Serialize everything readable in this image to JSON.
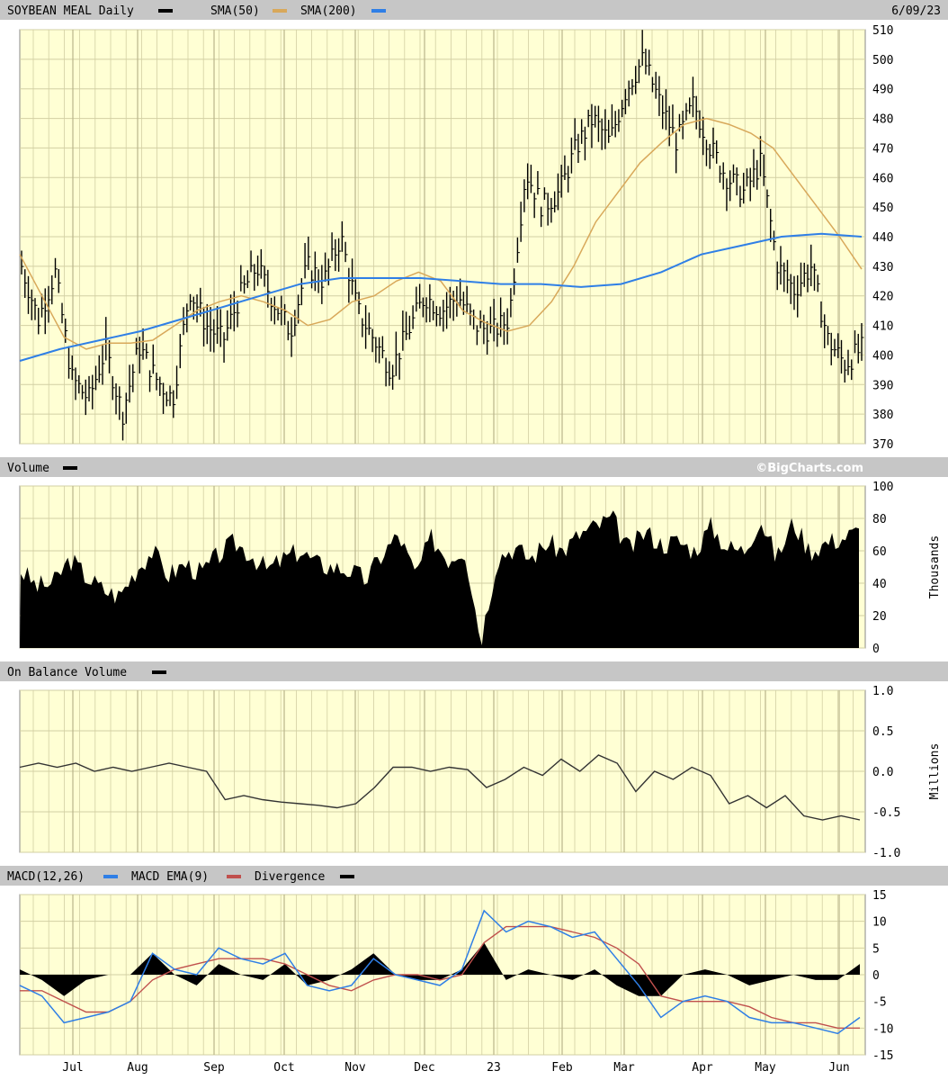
{
  "colors": {
    "panel_bg": "#ffffd4",
    "grid": "#d2cfa3",
    "header_bg": "#c6c6c6",
    "price": "#000000",
    "sma50": "#d8a85a",
    "sma200": "#2f7fe6",
    "macd": "#2f7fe6",
    "macd_ema": "#c0504d",
    "divergence": "#000000",
    "volume": "#000000",
    "obv": "#333333"
  },
  "date_label": "6/09/23",
  "watermark": "©BigCharts.com",
  "x_labels": [
    "Jul",
    "Aug",
    "Sep",
    "Oct",
    "Nov",
    "Dec",
    "23",
    "Feb",
    "Mar",
    "Apr",
    "May",
    "Jun"
  ],
  "chart_data": [
    {
      "type": "line",
      "panel": "price",
      "title": "SOYBEAN MEAL Daily",
      "legend": [
        {
          "name": "SOYBEAN MEAL Daily",
          "color": "#000000"
        },
        {
          "name": "SMA(50)",
          "color": "#d8a85a"
        },
        {
          "name": "SMA(200)",
          "color": "#2f7fe6"
        }
      ],
      "ylim": [
        370,
        510
      ],
      "yticks": [
        370,
        380,
        390,
        400,
        410,
        420,
        430,
        440,
        450,
        460,
        470,
        480,
        490,
        500,
        510
      ],
      "grid": true,
      "x_week_index": [
        0,
        4,
        8,
        13,
        17,
        22,
        26,
        30,
        34,
        39,
        43,
        48
      ],
      "series": [
        {
          "name": "SOYBEAN MEAL Daily",
          "style": "ohlc",
          "x": [
            0,
            1,
            2,
            3,
            4,
            5,
            6,
            7,
            8,
            9,
            10,
            11,
            12,
            13,
            14,
            15,
            16,
            17,
            18,
            19,
            20,
            21,
            22,
            23,
            24,
            25,
            26,
            27,
            28,
            29,
            30,
            31,
            32,
            33,
            34,
            35,
            36,
            37,
            38,
            39,
            40,
            41,
            42,
            43,
            44,
            45,
            46,
            47,
            48,
            49,
            50
          ],
          "values": [
            430,
            412,
            428,
            392,
            385,
            402,
            380,
            403,
            392,
            385,
            422,
            410,
            405,
            420,
            430,
            418,
            408,
            430,
            425,
            440,
            415,
            405,
            395,
            408,
            420,
            415,
            420,
            410,
            408,
            412,
            462,
            450,
            455,
            470,
            480,
            472,
            490,
            500,
            485,
            472,
            485,
            470,
            460,
            455,
            465,
            430,
            422,
            430,
            405,
            397,
            402
          ]
        },
        {
          "name": "SMA(50)",
          "values": [
            434,
            420,
            406,
            402,
            404,
            404,
            405,
            410,
            415,
            418,
            420,
            418,
            415,
            410,
            412,
            418,
            420,
            425,
            428,
            425,
            415,
            411,
            408,
            410,
            418,
            430,
            445,
            455,
            465,
            472,
            478,
            480,
            478,
            475,
            470,
            460,
            450,
            440,
            429
          ]
        },
        {
          "name": "SMA(200)",
          "values": [
            398,
            402,
            405,
            408,
            412,
            416,
            420,
            424,
            426,
            426,
            426,
            425,
            424,
            424,
            423,
            424,
            428,
            434,
            437,
            440,
            441,
            440
          ]
        }
      ]
    },
    {
      "type": "area",
      "panel": "volume",
      "title": "Volume",
      "ylabel": "Thousands",
      "ylim": [
        0,
        100
      ],
      "yticks": [
        0,
        20,
        40,
        60,
        80,
        100
      ],
      "grid": true,
      "series": [
        {
          "name": "Volume",
          "values": [
            48,
            38,
            40,
            55,
            44,
            36,
            32,
            48,
            60,
            45,
            52,
            46,
            57,
            65,
            58,
            48,
            55,
            60,
            52,
            50,
            48,
            42,
            58,
            70,
            45,
            68,
            55,
            62,
            5,
            56,
            62,
            55,
            65,
            60,
            70,
            75,
            80,
            60,
            72,
            64,
            66,
            60,
            75,
            62,
            60,
            80,
            55,
            78,
            60,
            65,
            68,
            72
          ]
        }
      ]
    },
    {
      "type": "line",
      "panel": "obv",
      "title": "On Balance Volume",
      "ylabel": "Millions",
      "ylim": [
        -1.0,
        1.0
      ],
      "yticks": [
        -1.0,
        -0.5,
        0.0,
        0.5,
        1.0
      ],
      "grid": true,
      "series": [
        {
          "name": "On Balance Volume",
          "values": [
            0.05,
            0.1,
            0.05,
            0.1,
            0.0,
            0.05,
            0.0,
            0.05,
            0.1,
            0.05,
            0.0,
            -0.35,
            -0.3,
            -0.35,
            -0.38,
            -0.4,
            -0.42,
            -0.45,
            -0.4,
            -0.2,
            0.05,
            0.05,
            0.0,
            0.05,
            0.02,
            -0.2,
            -0.1,
            0.05,
            -0.05,
            0.15,
            0.0,
            0.2,
            0.1,
            -0.25,
            0.0,
            -0.1,
            0.05,
            -0.05,
            -0.4,
            -0.3,
            -0.45,
            -0.3,
            -0.55,
            -0.6,
            -0.55,
            -0.6
          ]
        }
      ]
    },
    {
      "type": "line",
      "panel": "macd",
      "title": "MACD(12,26)",
      "legend": [
        {
          "name": "MACD(12,26)",
          "color": "#2f7fe6"
        },
        {
          "name": "MACD EMA(9)",
          "color": "#c0504d"
        },
        {
          "name": "Divergence",
          "color": "#000000"
        }
      ],
      "ylim": [
        -15,
        15
      ],
      "yticks": [
        -15,
        -10,
        -5,
        0,
        5,
        10,
        15
      ],
      "grid": true,
      "series": [
        {
          "name": "MACD(12,26)",
          "values": [
            -2,
            -4,
            -9,
            -8,
            -7,
            -5,
            4,
            1,
            0,
            5,
            3,
            2,
            4,
            -2,
            -3,
            -2,
            3,
            0,
            -1,
            -2,
            1,
            12,
            8,
            10,
            9,
            7,
            8,
            3,
            -2,
            -8,
            -5,
            -4,
            -5,
            -8,
            -9,
            -9,
            -10,
            -11,
            -8
          ]
        },
        {
          "name": "MACD EMA(9)",
          "values": [
            -3,
            -3,
            -5,
            -7,
            -7,
            -5,
            -1,
            1,
            2,
            3,
            3,
            3,
            2,
            0,
            -2,
            -3,
            -1,
            0,
            0,
            -1,
            0,
            6,
            9,
            9,
            9,
            8,
            7,
            5,
            2,
            -4,
            -5,
            -5,
            -5,
            -6,
            -8,
            -9,
            -9,
            -10,
            -10
          ]
        },
        {
          "name": "Divergence",
          "style": "histogram",
          "values": [
            1,
            -1,
            -4,
            -1,
            0,
            0,
            4,
            0,
            -2,
            2,
            0,
            -1,
            2,
            -2,
            -1,
            1,
            4,
            0,
            -1,
            -1,
            1,
            6,
            -1,
            1,
            0,
            -1,
            1,
            -2,
            -4,
            -4,
            0,
            1,
            0,
            -2,
            -1,
            0,
            -1,
            -1,
            2
          ]
        }
      ]
    }
  ]
}
